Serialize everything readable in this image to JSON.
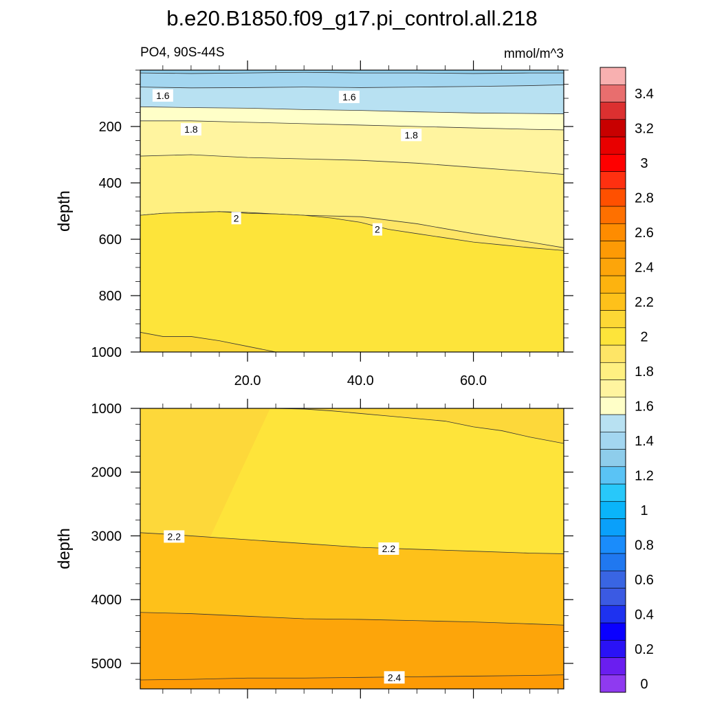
{
  "chart_data": {
    "type": "contour",
    "title": "b.e20.B1850.f09_g17.pi_control.all.218",
    "left_string": "PO4, 90S-44S",
    "right_string": "mmol/m^3",
    "xticks": [
      20,
      40,
      60
    ],
    "xtick_labels": [
      "20.0",
      "40.0",
      "60.0"
    ],
    "xlim": [
      1,
      76
    ],
    "panels": [
      {
        "id": "upper",
        "ylabel": "depth",
        "ylim": [
          0,
          1000
        ],
        "yticks": [
          200,
          400,
          600,
          800,
          1000
        ],
        "ytick_labels": [
          "200",
          "400",
          "600",
          "800",
          "1000"
        ],
        "background_color": "#8ecdeb",
        "bands": [
          {
            "color": "#a3d6f0",
            "contour": {
              "x": [
                1,
                10,
                20,
                30,
                40,
                50,
                60,
                70,
                76
              ],
              "y": [
                10,
                12,
                10,
                8,
                10,
                10,
                12,
                10,
                10
              ]
            }
          },
          {
            "color": "#b8e1f2",
            "contour": {
              "x": [
                1,
                10,
                20,
                30,
                40,
                50,
                60,
                70,
                76
              ],
              "y": [
                60,
                63,
                62,
                60,
                62,
                60,
                58,
                55,
                52
              ]
            }
          },
          {
            "color": "#ffffc8",
            "contour": {
              "x": [
                1,
                10,
                20,
                30,
                40,
                50,
                60,
                76
              ],
              "y": [
                130,
                133,
                135,
                140,
                143,
                148,
                152,
                155
              ]
            }
          },
          {
            "color": "#fff49f",
            "contour": {
              "x": [
                1,
                10,
                20,
                30,
                40,
                50,
                60,
                70,
                76
              ],
              "y": [
                180,
                180,
                185,
                190,
                195,
                200,
                205,
                210,
                212
              ]
            }
          },
          {
            "color": "#fff081",
            "contour": {
              "x": [
                1,
                10,
                20,
                30,
                40,
                50,
                60,
                70,
                76
              ],
              "y": [
                305,
                300,
                310,
                315,
                320,
                330,
                345,
                360,
                370
              ]
            }
          },
          {
            "color": "#fee566",
            "contour": {
              "x": [
                1,
                5,
                10,
                15,
                20,
                25,
                30,
                40,
                50,
                60,
                70,
                76
              ],
              "y": [
                515,
                508,
                505,
                502,
                505,
                510,
                515,
                520,
                545,
                580,
                610,
                630
              ]
            }
          },
          {
            "color": "#fde43a",
            "contour": {
              "x": [
                1,
                5,
                10,
                15,
                20,
                25,
                30,
                35,
                40,
                45,
                50,
                55,
                60,
                65,
                70,
                76
              ],
              "y": [
                515,
                508,
                505,
                502,
                508,
                510,
                515,
                525,
                540,
                565,
                580,
                595,
                610,
                620,
                630,
                640
              ]
            }
          },
          {
            "color": "#fdd835",
            "contour": {
              "x": [
                1,
                5,
                10,
                15,
                20,
                25
              ],
              "y": [
                930,
                945,
                945,
                960,
                980,
                1000
              ]
            }
          }
        ],
        "labels": [
          {
            "text": "1.6",
            "x": 5,
            "y": 90
          },
          {
            "text": "1.6",
            "x": 38,
            "y": 95
          },
          {
            "text": "1.8",
            "x": 10,
            "y": 210
          },
          {
            "text": "1.8",
            "x": 49,
            "y": 230
          },
          {
            "text": "2",
            "x": 18,
            "y": 525
          },
          {
            "text": "2",
            "x": 43,
            "y": 565
          }
        ]
      },
      {
        "id": "lower",
        "ylabel": "depth",
        "ylim": [
          1000,
          5400
        ],
        "yticks": [
          1000,
          2000,
          3000,
          4000,
          5000
        ],
        "ytick_labels": [
          "1000",
          "2000",
          "3000",
          "4000",
          "5000"
        ],
        "background_color": "#fdd83a",
        "bands": [
          {
            "color": "#fee43a",
            "contour": {
              "x": [
                24,
                30,
                35,
                40,
                45,
                50,
                55,
                60,
                65,
                70,
                76
              ],
              "y": [
                1000,
                1010,
                1040,
                1080,
                1120,
                1160,
                1200,
                1290,
                1350,
                1450,
                1550
              ]
            }
          },
          {
            "color": "#fec11a",
            "contour": {
              "x": [
                1,
                5,
                10,
                15,
                20,
                30,
                40,
                50,
                60,
                70,
                76
              ],
              "y": [
                2950,
                2970,
                3000,
                3030,
                3060,
                3120,
                3180,
                3210,
                3240,
                3270,
                3280
              ]
            }
          },
          {
            "color": "#fda50a",
            "contour": {
              "x": [
                1,
                10,
                20,
                30,
                40,
                50,
                60,
                70,
                76
              ],
              "y": [
                4200,
                4220,
                4260,
                4300,
                4310,
                4330,
                4350,
                4380,
                4400
              ]
            }
          },
          {
            "color": "#fd9a05",
            "contour": {
              "x": [
                1,
                10,
                20,
                30,
                40,
                50,
                60,
                70,
                76
              ],
              "y": [
                5260,
                5250,
                5230,
                5230,
                5220,
                5210,
                5200,
                5190,
                5180
              ]
            }
          }
        ],
        "labels": [
          {
            "text": "2.2",
            "x": 7,
            "y": 3010
          },
          {
            "text": "2.2",
            "x": 45,
            "y": 3200
          },
          {
            "text": "2.4",
            "x": 46,
            "y": 5220
          }
        ]
      }
    ],
    "colorbar": {
      "orientation": "vertical",
      "position": "right",
      "levels": [
        0,
        0.1,
        0.2,
        0.3,
        0.4,
        0.5,
        0.6,
        0.7,
        0.8,
        0.9,
        1.0,
        1.1,
        1.2,
        1.3,
        1.4,
        1.5,
        1.6,
        1.7,
        1.8,
        1.9,
        2.0,
        2.1,
        2.2,
        2.3,
        2.4,
        2.5,
        2.6,
        2.7,
        2.8,
        2.9,
        3.0,
        3.1,
        3.2,
        3.3,
        3.4,
        3.5
      ],
      "colors": [
        "#8f3af0",
        "#6a1ef0",
        "#2a12f5",
        "#0a00ff",
        "#1e32f0",
        "#3b5ae3",
        "#3965e3",
        "#2078f0",
        "#1a8cfb",
        "#0aa0fa",
        "#0ab4fa",
        "#28c8fa",
        "#5ac3f5",
        "#8ecdeb",
        "#a3d6f0",
        "#b8e1f2",
        "#ffffc8",
        "#fff49f",
        "#fff081",
        "#fee566",
        "#fde43a",
        "#fdd835",
        "#fec11a",
        "#fdb30f",
        "#fda50a",
        "#fd9a05",
        "#fe8c00",
        "#fe7000",
        "#ff5000",
        "#ff3010",
        "#ff0000",
        "#e80000",
        "#c80000",
        "#dc3030",
        "#e86e6e",
        "#f8b0b0"
      ],
      "tick_labels": [
        {
          "value": 0,
          "text": "0"
        },
        {
          "value": 0.2,
          "text": "0.2"
        },
        {
          "value": 0.4,
          "text": "0.4"
        },
        {
          "value": 0.6,
          "text": "0.6"
        },
        {
          "value": 0.8,
          "text": "0.8"
        },
        {
          "value": 1.0,
          "text": "1"
        },
        {
          "value": 1.2,
          "text": "1.2"
        },
        {
          "value": 1.4,
          "text": "1.4"
        },
        {
          "value": 1.6,
          "text": "1.6"
        },
        {
          "value": 1.8,
          "text": "1.8"
        },
        {
          "value": 2.0,
          "text": "2"
        },
        {
          "value": 2.2,
          "text": "2.2"
        },
        {
          "value": 2.4,
          "text": "2.4"
        },
        {
          "value": 2.6,
          "text": "2.6"
        },
        {
          "value": 2.8,
          "text": "2.8"
        },
        {
          "value": 3.0,
          "text": "3"
        },
        {
          "value": 3.2,
          "text": "3.2"
        },
        {
          "value": 3.4,
          "text": "3.4"
        }
      ]
    }
  }
}
